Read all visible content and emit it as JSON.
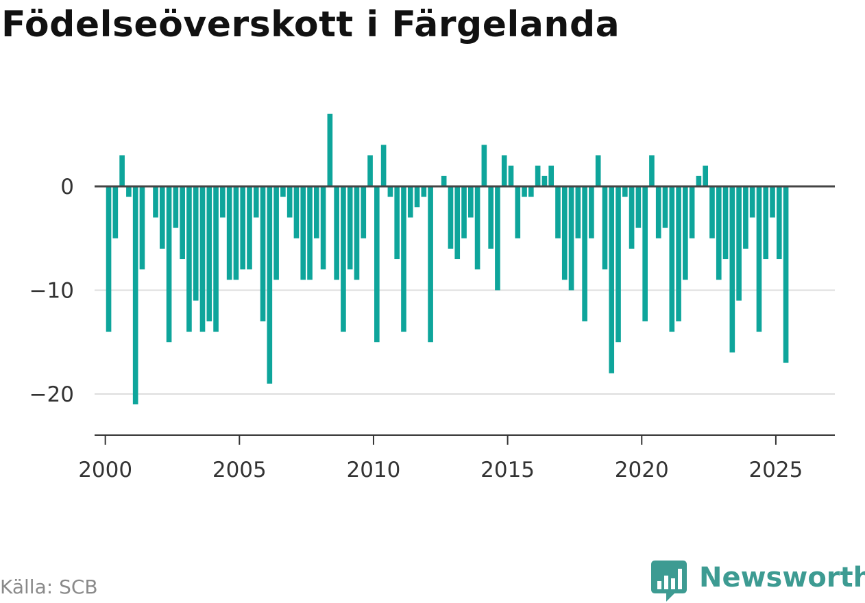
{
  "title": "Födelseöverskott i Färgelanda",
  "source": "Källa: SCB",
  "brand": {
    "name": "Newsworthy",
    "icon": "newsworthy-logo-icon"
  },
  "colors": {
    "bar": "#0ea59b",
    "zero_line": "#444444",
    "grid": "#dddddd",
    "axis": "#333333",
    "brand": "#3d9b92"
  },
  "chart_data": {
    "type": "bar",
    "title": "Födelseöverskott i Färgelanda",
    "xlabel": "",
    "ylabel": "",
    "x_ticks": [
      "2000",
      "2005",
      "2010",
      "2015",
      "2020",
      "2025"
    ],
    "y_ticks": [
      0,
      -10,
      -20
    ],
    "y_tick_labels": [
      "0",
      "−10",
      "−20"
    ],
    "ylim": [
      -24,
      8
    ],
    "xlim": [
      1999.6,
      2027.2
    ],
    "grid": true,
    "frequency": "quarterly",
    "x_start": "2000 Q1",
    "values": [
      -14,
      -5,
      3,
      -1,
      -21,
      -8,
      0,
      -3,
      -6,
      -15,
      -4,
      -7,
      -14,
      -11,
      -14,
      -13,
      -14,
      -3,
      -9,
      -9,
      -8,
      -8,
      -3,
      -13,
      -19,
      -9,
      -1,
      -3,
      -5,
      -9,
      -9,
      -5,
      -8,
      7,
      -9,
      -14,
      -8,
      -9,
      -5,
      3,
      -15,
      4,
      -1,
      -7,
      -14,
      -3,
      -2,
      -1,
      -15,
      0,
      1,
      -6,
      -7,
      -5,
      -3,
      -8,
      4,
      -6,
      -10,
      3,
      2,
      -5,
      -1,
      -1,
      2,
      1,
      2,
      -5,
      -9,
      -10,
      -5,
      -13,
      -5,
      3,
      -8,
      -18,
      -15,
      -1,
      -6,
      -4,
      -13,
      3,
      -5,
      -4,
      -14,
      -13,
      -9,
      -5,
      1,
      2,
      -5,
      -9,
      -7,
      -16,
      -11,
      -6,
      -3,
      -14,
      -7,
      -3,
      -7,
      -17
    ]
  }
}
